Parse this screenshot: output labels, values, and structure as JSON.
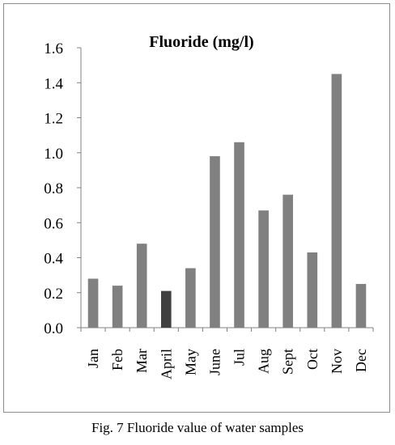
{
  "caption": "Fig. 7 Fluoride value of water samples",
  "chart_data": {
    "type": "bar",
    "title": "Fluoride (mg/l)",
    "xlabel": "",
    "ylabel": "",
    "ylim": [
      0,
      1.6
    ],
    "yticks": [
      "0.0",
      "0.2",
      "0.4",
      "0.6",
      "0.8",
      "1.0",
      "1.2",
      "1.4",
      "1.6"
    ],
    "grid": false,
    "legend": "none",
    "categories": [
      "Jan",
      "Feb",
      "Mar",
      "April",
      "May",
      "June",
      "Jul",
      "Aug",
      "Sept",
      "Oct",
      "Nov",
      "Dec"
    ],
    "values": [
      0.28,
      0.24,
      0.48,
      0.21,
      0.34,
      0.98,
      1.06,
      0.67,
      0.76,
      0.43,
      1.45,
      0.25
    ],
    "bar_color": "#808080",
    "highlight_color": "#3f3f3f",
    "highlight_index": 3
  }
}
